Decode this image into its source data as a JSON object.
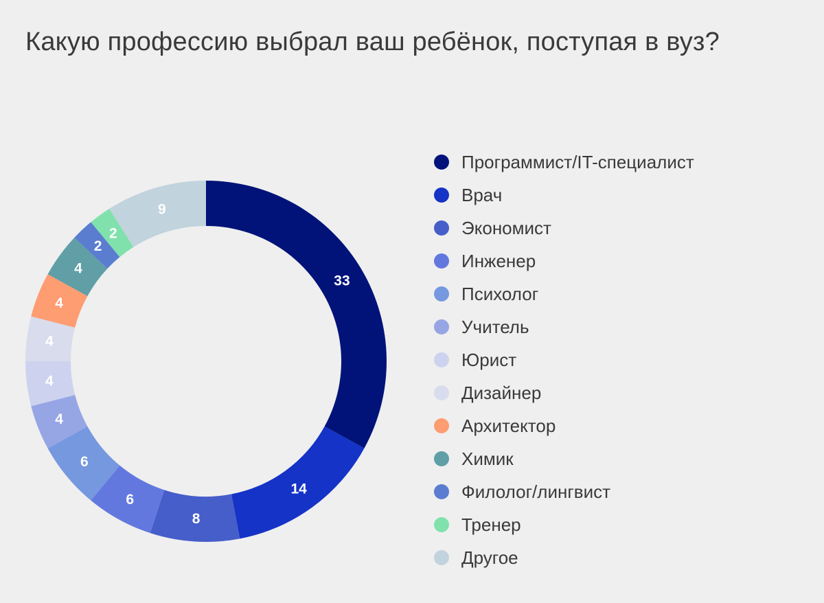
{
  "chart_data": {
    "type": "pie",
    "variant": "donut",
    "title": "Какую профессию выбрал ваш ребёнок, поступая в вуз?",
    "legend_position": "right",
    "categories": [
      "Программист/IT-специалист",
      "Врач",
      "Экономист",
      "Инженер",
      "Психолог",
      "Учитель",
      "Юрист",
      "Дизайнер",
      "Архитектор",
      "Химик",
      "Филолог/лингвист",
      "Тренер",
      "Другое"
    ],
    "values": [
      33,
      14,
      8,
      6,
      6,
      4,
      4,
      4,
      4,
      4,
      2,
      2,
      9
    ],
    "colors": [
      "#011379",
      "#1533c6",
      "#465ec9",
      "#6378df",
      "#7598df",
      "#96a6e4",
      "#cdd3ef",
      "#d9dcec",
      "#fe9c72",
      "#609fa6",
      "#5a7dd0",
      "#80e1ad",
      "#c1d3dd"
    ],
    "data_labels": true
  }
}
